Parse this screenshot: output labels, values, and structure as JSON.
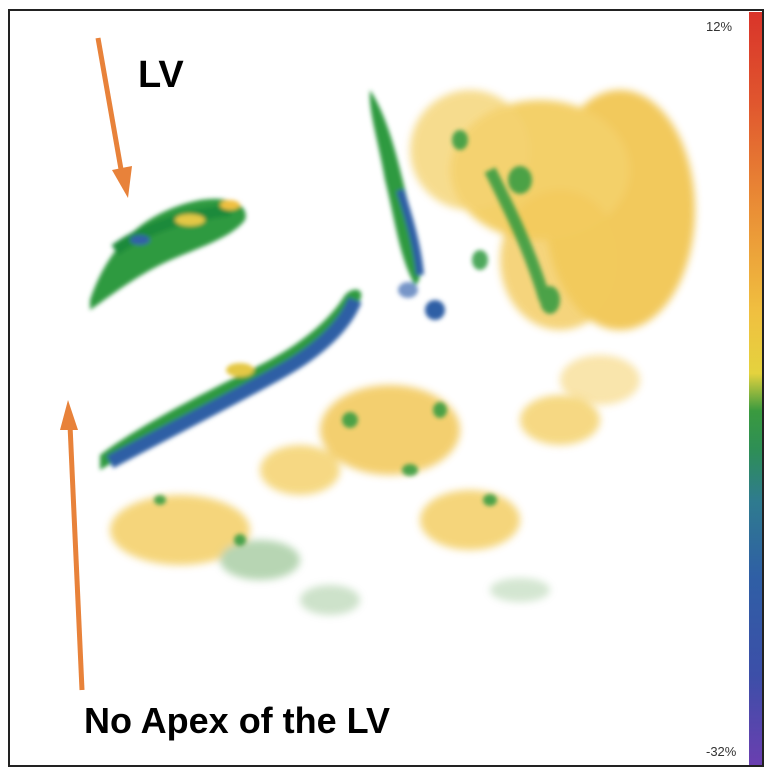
{
  "annotations": {
    "lv_label": "LV",
    "apex_label": "No Apex of the LV"
  },
  "colorbar": {
    "max_label": "12%",
    "min_label": "-32%",
    "colors": [
      "#d9342a",
      "#e98a35",
      "#f0c040",
      "#3a9a3f",
      "#2f5fa5",
      "#6a3fb0"
    ]
  },
  "arrows": {
    "color": "#e8823a"
  },
  "strain_colors": {
    "yellow": "#f0c040",
    "green": "#2f9a3f",
    "blue": "#2f5fa5"
  }
}
